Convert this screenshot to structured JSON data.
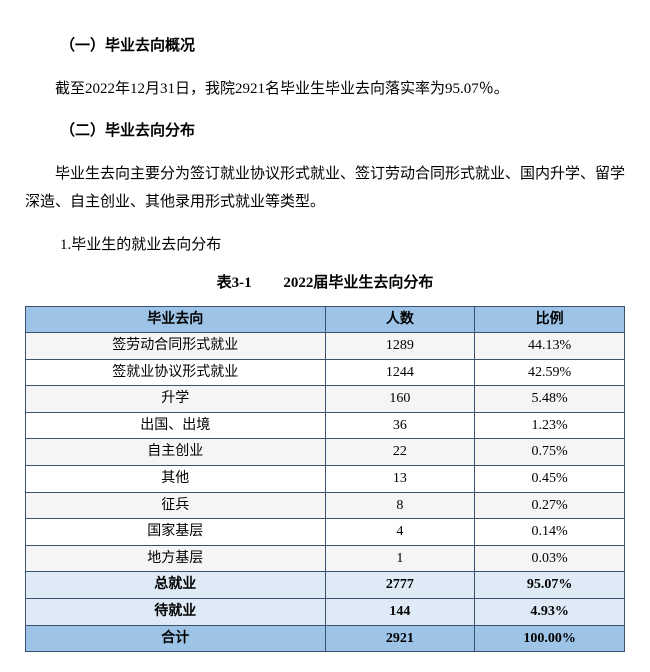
{
  "section1_title": "（一）毕业去向概况",
  "section1_para": "截至2022年12月31日，我院2921名毕业生毕业去向落实率为95.07％。",
  "section2_title": "（二）毕业去向分布",
  "section2_para": "毕业生去向主要分为签订就业协议形式就业、签订劳动合同形式就业、国内升学、留学深造、自主创业、其他录用形式就业等类型。",
  "sub_item": "1.毕业生的就业去向分布",
  "caption_num": "表3-1",
  "caption_title": "2022届毕业生去向分布",
  "table": {
    "columns": [
      "毕业去向",
      "人数",
      "比例"
    ],
    "header_bg": "#9dc3e6",
    "row_alt_bgs": [
      "#f5f5f5",
      "#ffffff"
    ],
    "rows": [
      {
        "label": "签劳动合同形式就业",
        "count": "1289",
        "pct": "44.13%",
        "bold": false,
        "bg": null
      },
      {
        "label": "签就业协议形式就业",
        "count": "1244",
        "pct": "42.59%",
        "bold": false,
        "bg": null
      },
      {
        "label": "升学",
        "count": "160",
        "pct": "5.48%",
        "bold": false,
        "bg": null
      },
      {
        "label": "出国、出境",
        "count": "36",
        "pct": "1.23%",
        "bold": false,
        "bg": null
      },
      {
        "label": "自主创业",
        "count": "22",
        "pct": "0.75%",
        "bold": false,
        "bg": null
      },
      {
        "label": "其他",
        "count": "13",
        "pct": "0.45%",
        "bold": false,
        "bg": null
      },
      {
        "label": "征兵",
        "count": "8",
        "pct": "0.27%",
        "bold": false,
        "bg": null
      },
      {
        "label": "国家基层",
        "count": "4",
        "pct": "0.14%",
        "bold": false,
        "bg": null
      },
      {
        "label": "地方基层",
        "count": "1",
        "pct": "0.03%",
        "bold": false,
        "bg": null
      },
      {
        "label": "总就业",
        "count": "2777",
        "pct": "95.07%",
        "bold": true,
        "bg": "#deebf7"
      },
      {
        "label": "待就业",
        "count": "144",
        "pct": "4.93%",
        "bold": true,
        "bg": "#deebf7"
      },
      {
        "label": "合计",
        "count": "2921",
        "pct": "100.00%",
        "bold": true,
        "bg": "#9dc3e6"
      }
    ]
  }
}
